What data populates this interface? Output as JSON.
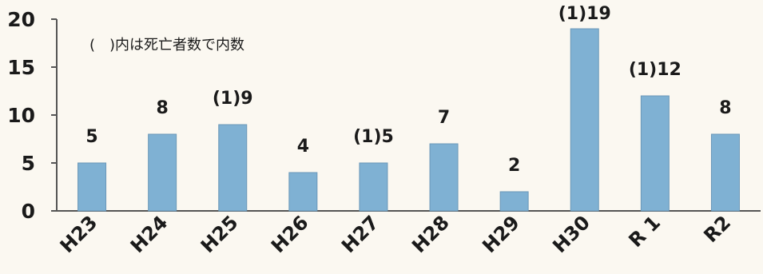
{
  "chart_data": {
    "type": "bar",
    "categories": [
      "H23",
      "H24",
      "H25",
      "H26",
      "H27",
      "H28",
      "H29",
      "H30",
      "R 1",
      "R2"
    ],
    "values": [
      5,
      8,
      9,
      4,
      5,
      7,
      2,
      19,
      12,
      8
    ],
    "deaths": [
      null,
      null,
      1,
      null,
      1,
      null,
      null,
      1,
      1,
      null
    ],
    "data_labels": [
      "5",
      "8",
      "(1)9",
      "4",
      "(1)5",
      "7",
      "2",
      "(1)19",
      "(1)12",
      "8"
    ],
    "annotation": "(　)内は死亡者数で内数",
    "y_ticks": [
      0,
      5,
      10,
      15,
      20
    ],
    "ylim": [
      0,
      20
    ],
    "title": "",
    "xlabel": "",
    "ylabel": "",
    "grid": false,
    "legend": false,
    "bar_color": "#7fb1d3"
  }
}
